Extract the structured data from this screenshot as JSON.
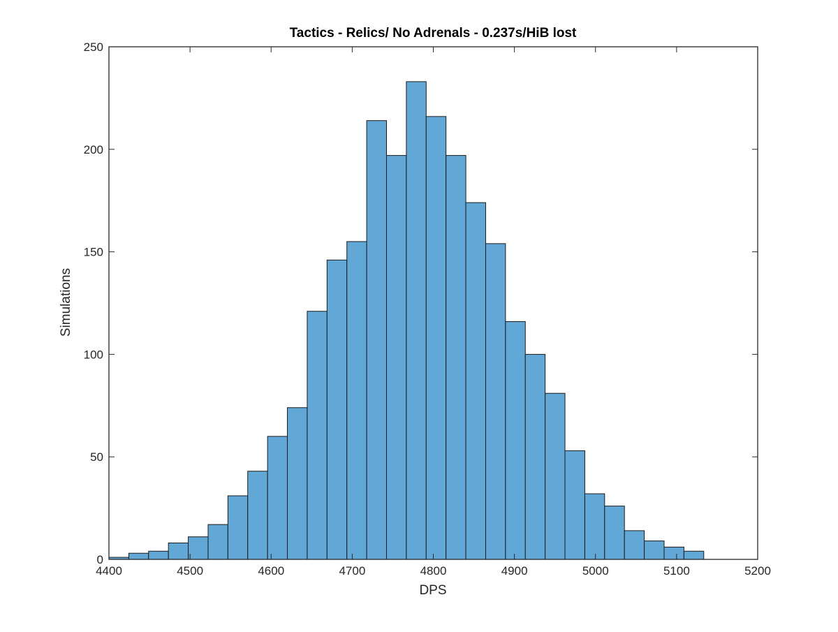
{
  "chart_data": {
    "type": "bar",
    "subtype": "histogram",
    "title": "Tactics - Relics/ No Adrenals - 0.237s/HiB lost",
    "xlabel": "DPS",
    "ylabel": "Simulations",
    "xlim": [
      4400,
      5200
    ],
    "ylim": [
      0,
      250
    ],
    "xticks": [
      4400,
      4500,
      4600,
      4700,
      4800,
      4900,
      5000,
      5100,
      5200
    ],
    "yticks": [
      0,
      50,
      100,
      150,
      200,
      250
    ],
    "bin_start": 4400,
    "bin_width": 24.45,
    "values": [
      1,
      3,
      4,
      8,
      11,
      17,
      31,
      43,
      60,
      74,
      121,
      146,
      155,
      214,
      197,
      233,
      216,
      197,
      174,
      154,
      116,
      100,
      81,
      53,
      32,
      26,
      14,
      9,
      6,
      4
    ],
    "grid": false,
    "legend": "none",
    "bar_color": "#62a8d6",
    "edge_color": "#1a1a1a"
  }
}
